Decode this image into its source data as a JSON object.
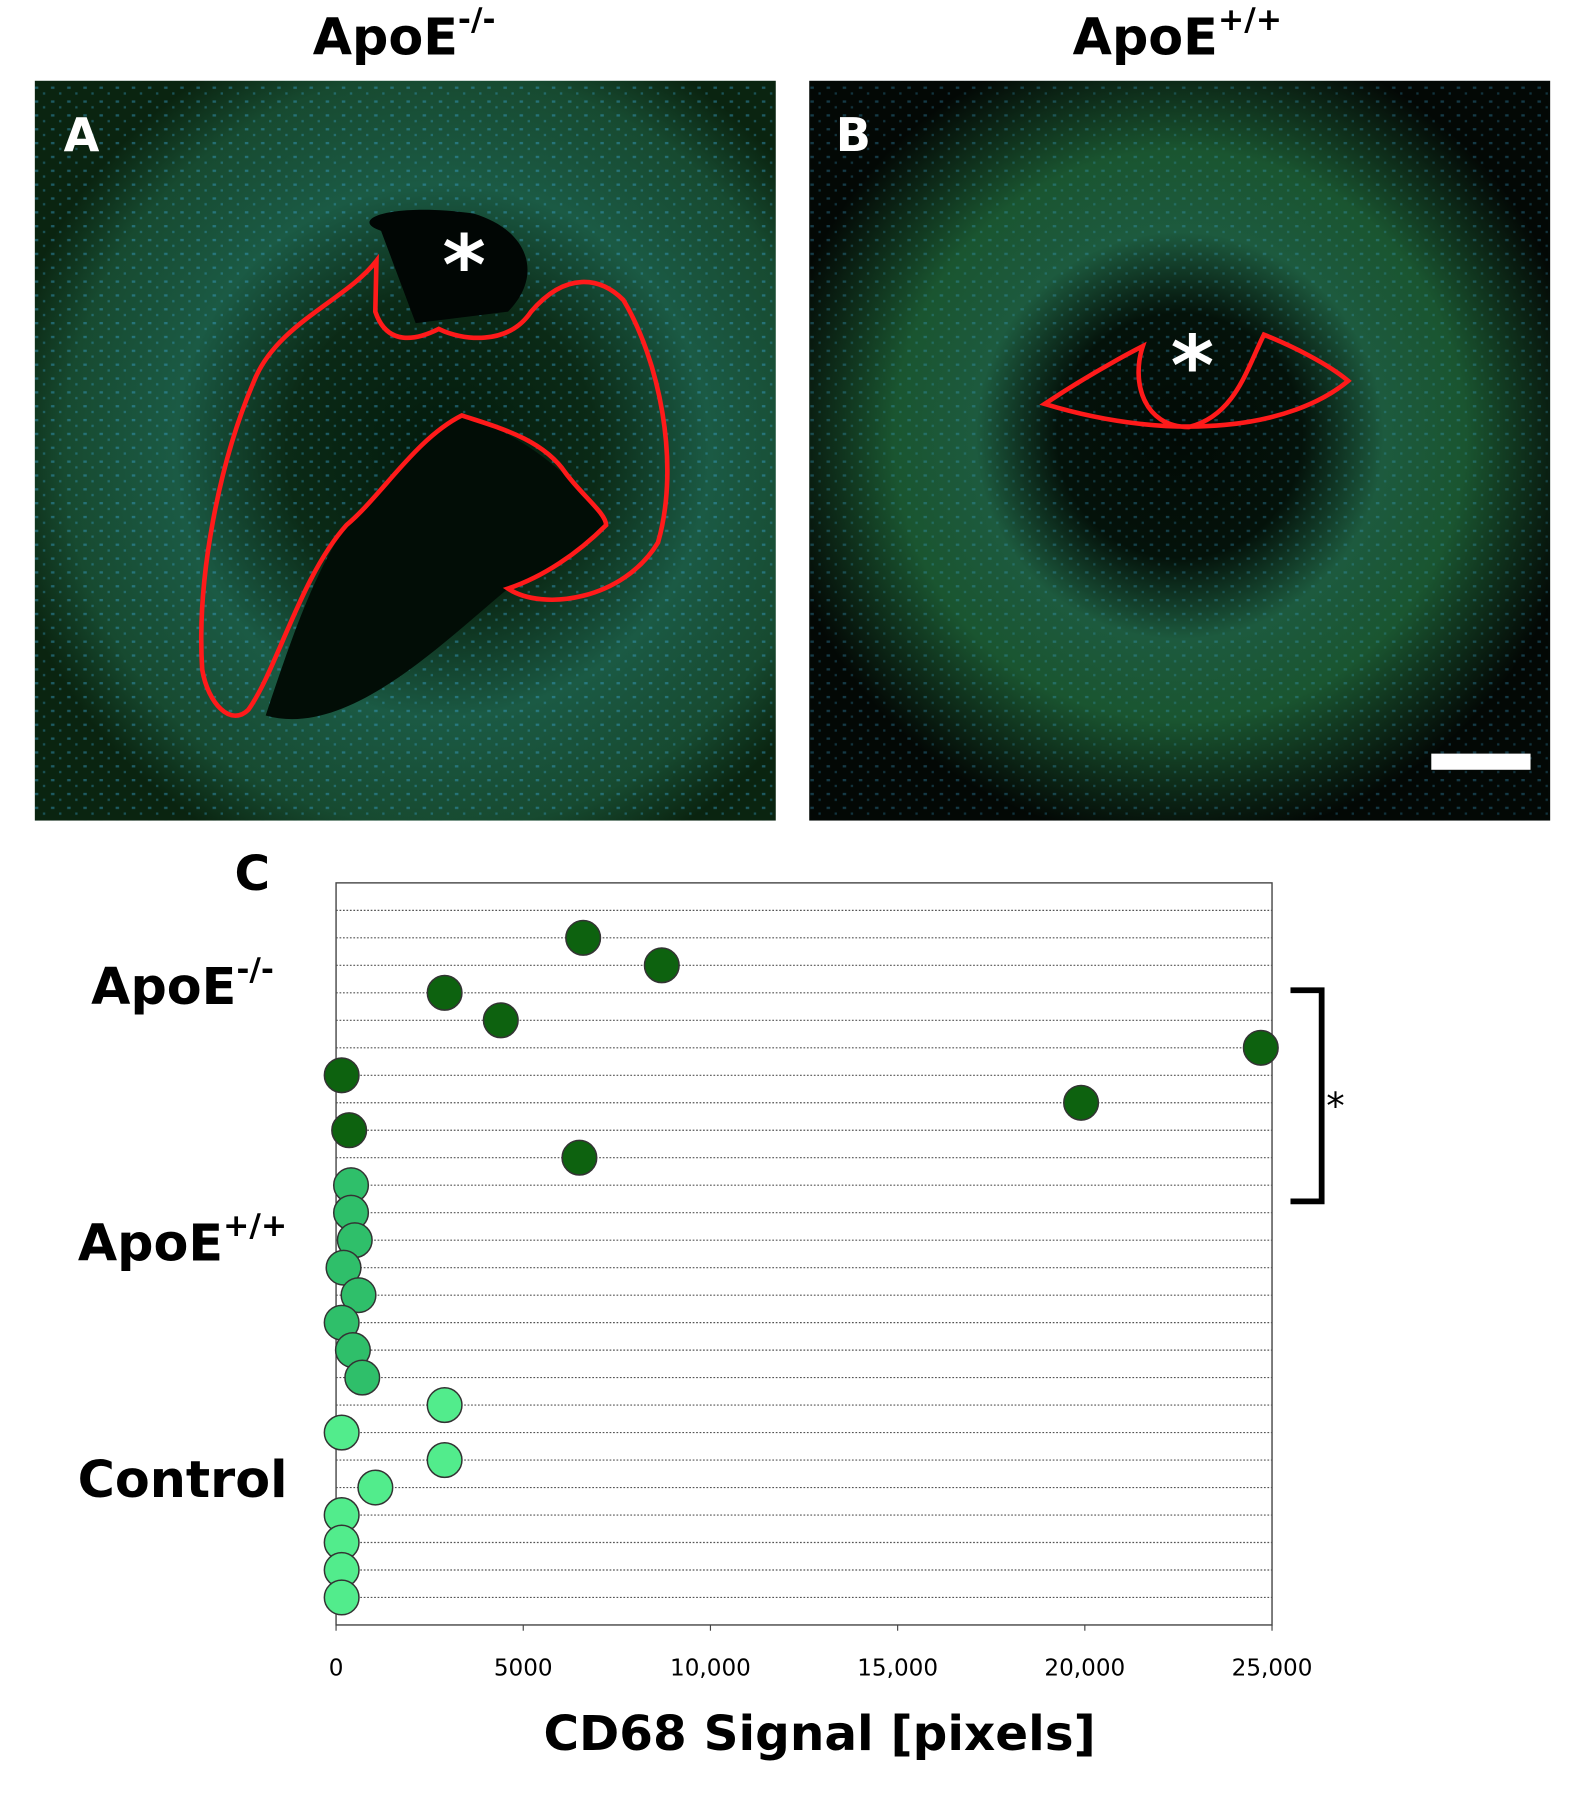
{
  "panels": [
    {
      "letter": "A",
      "title": {
        "base": "ApoE",
        "sup": "-/-"
      },
      "marker": "*"
    },
    {
      "letter": "B",
      "title": {
        "base": "ApoE",
        "sup": "+/+"
      },
      "marker": "*"
    }
  ],
  "chart_data": {
    "type": "dot",
    "letter": "C",
    "x_label": "CD68 Signal [pixels]",
    "xlim": [
      0,
      25000
    ],
    "xticks": [
      0,
      5000,
      {
        "value": 10000,
        "label": "10,000"
      },
      {
        "value": 15000,
        "label": "15,000"
      },
      {
        "value": 20000,
        "label": "20,000"
      },
      {
        "value": 25000,
        "label": "25,000"
      }
    ],
    "series": [
      {
        "name": {
          "base": "ApoE",
          "sup": "-/-"
        },
        "color": "#0d620f",
        "values": [
          6600,
          8700,
          2900,
          4400,
          24700,
          150,
          19900,
          350,
          6500
        ]
      },
      {
        "name": {
          "base": "ApoE",
          "sup": "+/+"
        },
        "color": "#2fbf6a",
        "values": [
          400,
          400,
          500,
          200,
          600,
          150,
          450,
          700
        ]
      },
      {
        "name": "Control",
        "color": "#52ec8c",
        "values": [
          2900,
          150,
          2900,
          1050,
          150,
          150,
          150,
          150
        ]
      }
    ],
    "annotation": "*"
  }
}
